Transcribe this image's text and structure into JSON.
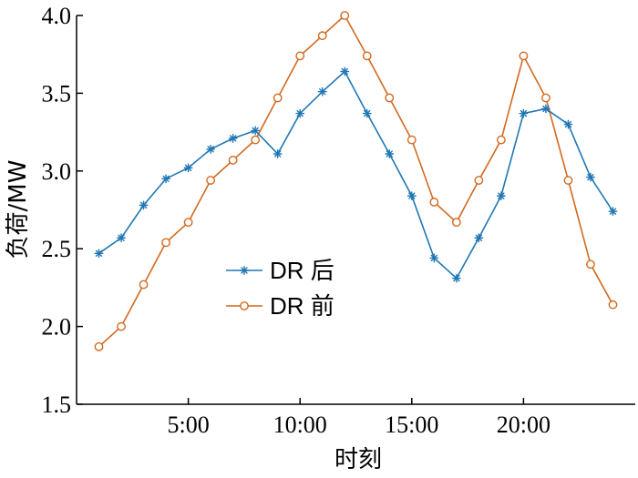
{
  "chart_data": {
    "type": "line",
    "title": "",
    "xlabel": "时刻",
    "ylabel": "负荷/MW",
    "x": [
      1,
      2,
      3,
      4,
      5,
      6,
      7,
      8,
      9,
      10,
      11,
      12,
      13,
      14,
      15,
      16,
      17,
      18,
      19,
      20,
      21,
      22,
      23,
      24
    ],
    "xlim": [
      0,
      25
    ],
    "ylim": [
      1.5,
      4.0
    ],
    "xticks": [
      5,
      10,
      15,
      20
    ],
    "xtick_labels": [
      "5:00",
      "10:00",
      "15:00",
      "20:00"
    ],
    "yticks": [
      1.5,
      2.0,
      2.5,
      3.0,
      3.5,
      4.0
    ],
    "ytick_labels": [
      "1.5",
      "2.0",
      "2.5",
      "3.0",
      "3.5",
      "4.0"
    ],
    "grid": false,
    "legend_position": "center-left",
    "series": [
      {
        "name": "DR 后",
        "color": "#1f77b4",
        "marker": "asterisk",
        "values": [
          2.47,
          2.57,
          2.78,
          2.95,
          3.02,
          3.14,
          3.21,
          3.26,
          3.11,
          3.37,
          3.51,
          3.64,
          3.37,
          3.11,
          2.84,
          2.44,
          2.31,
          2.57,
          2.84,
          3.37,
          3.4,
          3.3,
          2.96,
          2.74
        ]
      },
      {
        "name": "DR 前",
        "color": "#d2691e",
        "marker": "circle",
        "values": [
          1.87,
          2.0,
          2.27,
          2.54,
          2.67,
          2.94,
          3.07,
          3.2,
          3.47,
          3.74,
          3.87,
          4.0,
          3.74,
          3.47,
          3.2,
          2.8,
          2.67,
          2.94,
          3.2,
          3.74,
          3.47,
          2.94,
          2.4,
          2.14
        ]
      }
    ]
  }
}
